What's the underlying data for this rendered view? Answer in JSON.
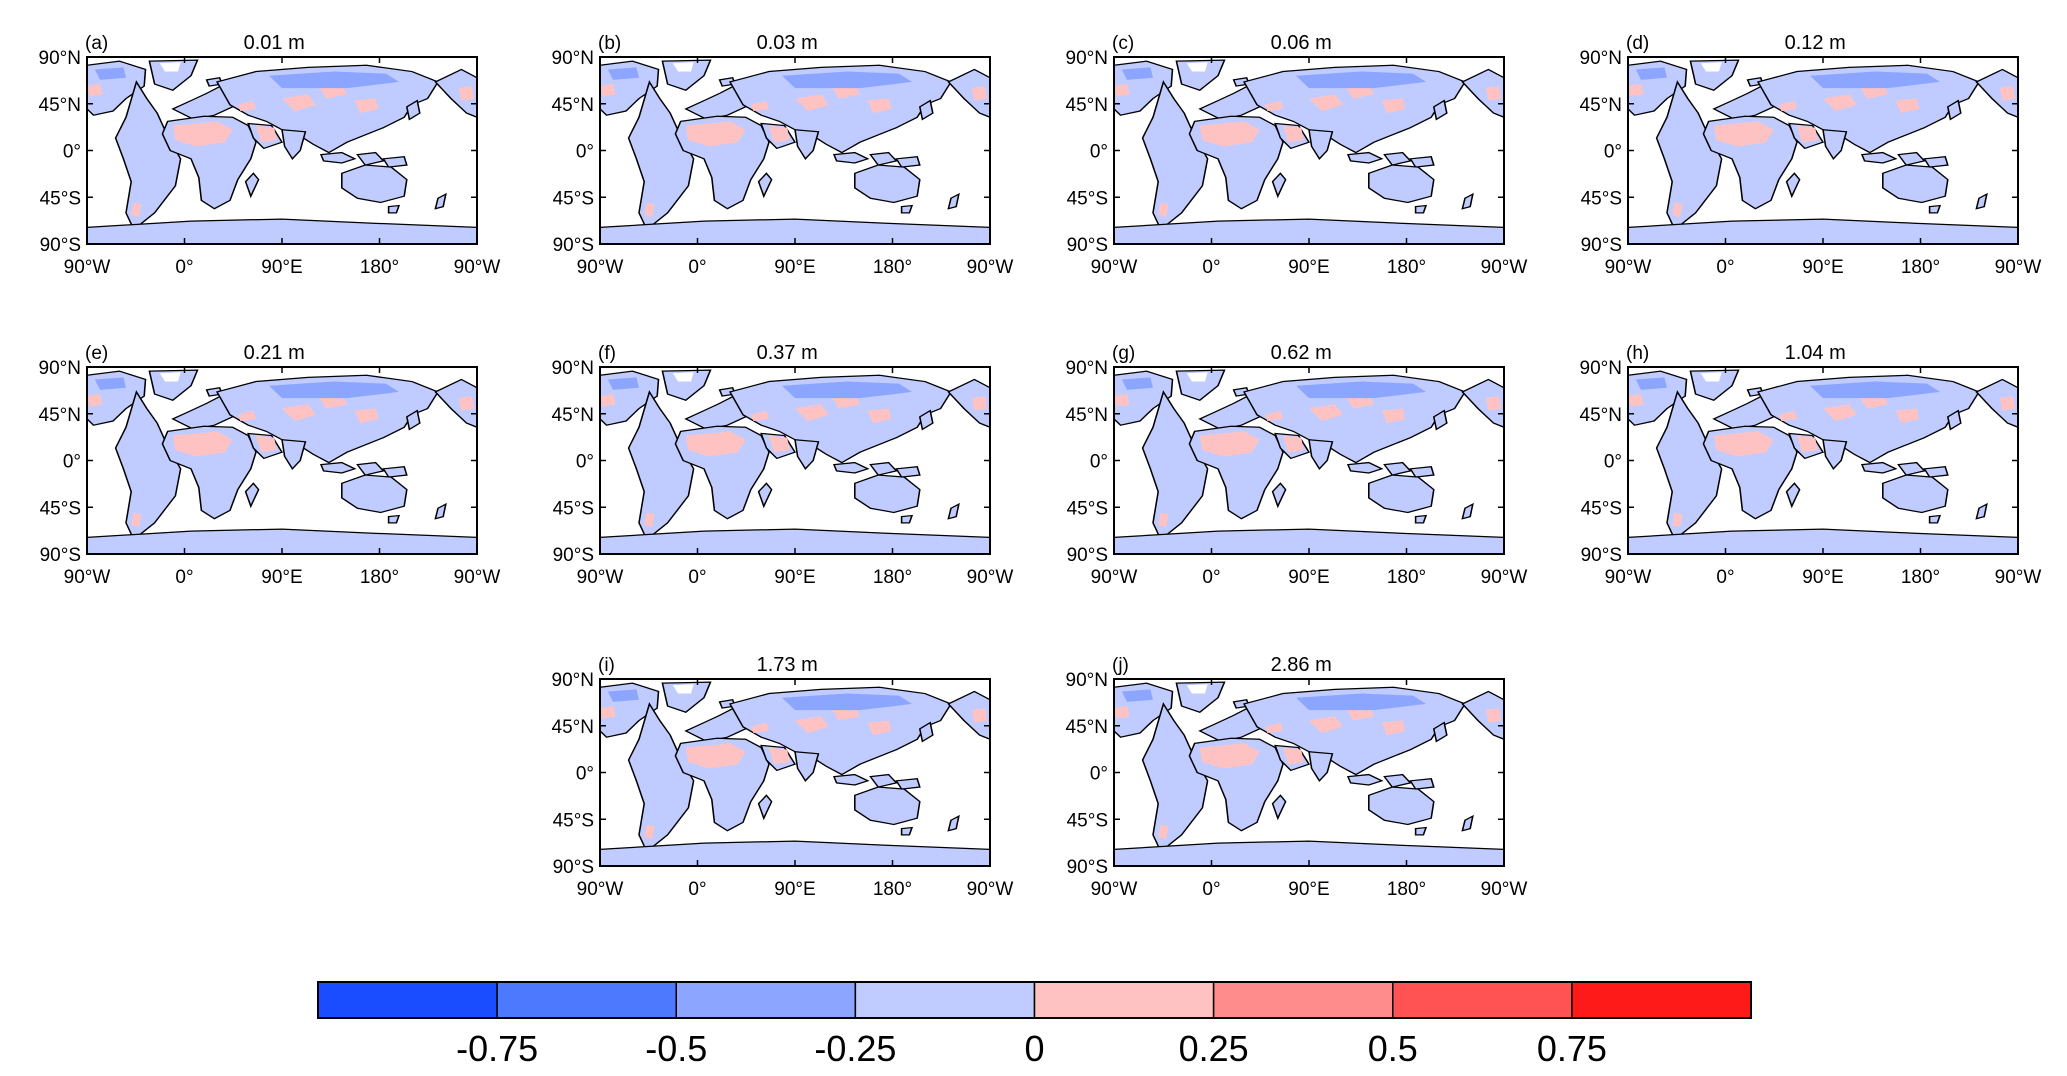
{
  "panels": [
    {
      "label": "(a)",
      "title": "0.01 m"
    },
    {
      "label": "(b)",
      "title": "0.03 m"
    },
    {
      "label": "(c)",
      "title": "0.06 m"
    },
    {
      "label": "(d)",
      "title": "0.12 m"
    },
    {
      "label": "(e)",
      "title": "0.21 m"
    },
    {
      "label": "(f)",
      "title": "0.37 m"
    },
    {
      "label": "(g)",
      "title": "0.62 m"
    },
    {
      "label": "(h)",
      "title": "1.04 m"
    },
    {
      "label": "(i)",
      "title": "1.73 m"
    },
    {
      "label": "(j)",
      "title": "2.86 m"
    }
  ],
  "lat_ticks": [
    "90°N",
    "45°N",
    "0°",
    "45°S",
    "90°S"
  ],
  "lon_ticks": [
    "90°W",
    "0°",
    "90°E",
    "180°",
    "90°W"
  ],
  "colorbar": {
    "colors": [
      "#1a4dff",
      "#4d79ff",
      "#8ca6ff",
      "#c0ccff",
      "#ffc2c2",
      "#ff8c8c",
      "#ff5252",
      "#ff1a1a"
    ],
    "labels": [
      "-0.75",
      "-0.5",
      "-0.25",
      "0",
      "0.25",
      "0.5",
      "0.75"
    ]
  },
  "map_colors": {
    "land": "#c0ccff",
    "warm": "#ffc2c2",
    "cold": "#8ca6ff",
    "ice": "#ffffff",
    "ocean": "#ffffff"
  }
}
